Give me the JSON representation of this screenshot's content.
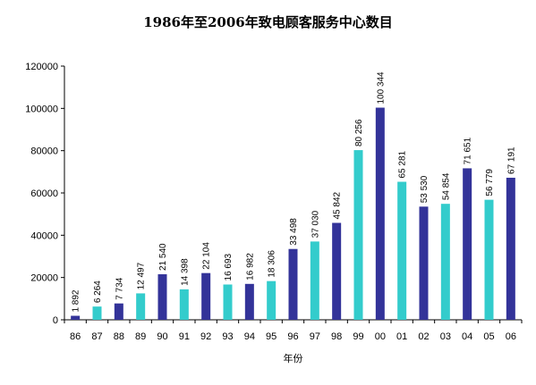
{
  "chart_data": {
    "type": "bar",
    "title": "1986年至2006年致电顾客服务中心数目",
    "xlabel": "年份",
    "ylabel": "",
    "ylim": [
      0,
      120000
    ],
    "yticks": [
      "0",
      "20000",
      "40000",
      "60000",
      "80000",
      "100000",
      "120000"
    ],
    "categories": [
      "86",
      "87",
      "88",
      "89",
      "90",
      "91",
      "92",
      "93",
      "94",
      "95",
      "96",
      "97",
      "98",
      "99",
      "00",
      "01",
      "02",
      "03",
      "04",
      "05",
      "06"
    ],
    "values": [
      1892,
      6264,
      7734,
      12497,
      21540,
      14398,
      22104,
      16693,
      16982,
      18306,
      33498,
      37030,
      45842,
      80256,
      100344,
      65281,
      53530,
      54854,
      71651,
      56779,
      67191
    ],
    "value_labels": [
      "1 892",
      "6 264",
      "7 734",
      "12 497",
      "21 540",
      "14 398",
      "22 104",
      "16 693",
      "16 982",
      "18 306",
      "33 498",
      "37 030",
      "45 842",
      "80 256",
      "100 344",
      "65 281",
      "53 530",
      "54 854",
      "71 651",
      "56 779",
      "67 191"
    ],
    "bar_colors": [
      "#333399",
      "#33CCCC"
    ],
    "grid": false
  }
}
